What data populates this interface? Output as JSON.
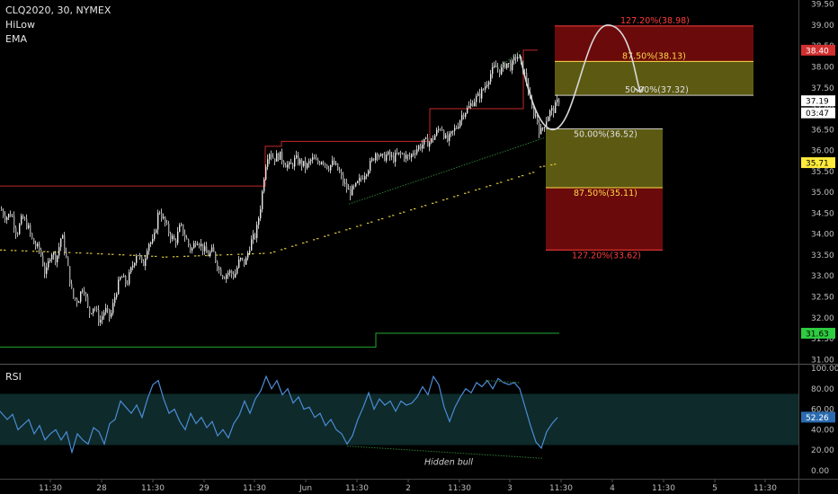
{
  "header": {
    "symbol": "CLQ2020, 30, NYMEX",
    "indicator1": "HiLow",
    "indicator2": "EMA",
    "rsi_label": "RSI"
  },
  "colors": {
    "background": "#000000",
    "candle": "#e8e8e8",
    "hilow_high": "#c62828",
    "hilow_low": "#1fa82e",
    "ema_dots": "#d8c43a",
    "rsi_line": "#4a8cd6",
    "rsi_band": "#0e2a2a",
    "zone_yellow": "#5c5a12",
    "zone_red": "#6b0a0a",
    "fib_red": "#ff3b3b",
    "fib_yellow": "#ffd84a",
    "fib_white": "#e0e0e0",
    "divergence": "#2e7d32"
  },
  "price_axis": {
    "ticks": [
      "39.50",
      "39.00",
      "38.50",
      "38.00",
      "37.50",
      "37.00",
      "36.50",
      "36.00",
      "35.50",
      "35.00",
      "34.50",
      "34.00",
      "33.50",
      "33.00",
      "32.50",
      "32.00",
      "31.50",
      "31.00"
    ],
    "tags": [
      {
        "label": "38.40",
        "value": 38.4,
        "bg": "#d32f2f",
        "fg": "#ffffff"
      },
      {
        "label": "37.19",
        "value": 37.19,
        "bg": "#ffffff",
        "fg": "#000000"
      },
      {
        "label": "03:47",
        "value": 36.9,
        "bg": "#ffffff",
        "fg": "#000000"
      },
      {
        "label": "35.71",
        "value": 35.71,
        "bg": "#ffeb3b",
        "fg": "#000000"
      },
      {
        "label": "31.63",
        "value": 31.63,
        "bg": "#2ecc40",
        "fg": "#000000"
      }
    ]
  },
  "rsi_axis": {
    "ticks": [
      "100.00",
      "80.00",
      "60.00",
      "40.00",
      "20.00",
      "0.00"
    ],
    "tag": {
      "label": "52.26",
      "value": 52.26,
      "bg": "#2b6cb0",
      "fg": "#ffffff"
    }
  },
  "time_axis": {
    "labels": [
      "11:30",
      "28",
      "11:30",
      "29",
      "11:30",
      "Jun",
      "11:30",
      "2",
      "11:30",
      "3",
      "11:30",
      "4",
      "11:30",
      "5",
      "11:30"
    ]
  },
  "chart_data": {
    "type": "candlestick",
    "price_ylim": [
      30.9,
      39.6
    ],
    "rsi_ylim": [
      0,
      100
    ],
    "fib_zones": [
      {
        "label": "127.20%(38.98)",
        "level": 38.98,
        "color": "red"
      },
      {
        "label": "87.50%(38.13)",
        "level": 38.13,
        "color": "yellow"
      },
      {
        "label": "50.00%(37.32)",
        "level": 37.32,
        "color": "white"
      },
      {
        "label": "50.00%(36.52)",
        "level": 36.52,
        "color": "white"
      },
      {
        "label": "87.50%(35.11)",
        "level": 35.11,
        "color": "yellow"
      },
      {
        "label": "127.20%(33.62)",
        "level": 33.62,
        "color": "red"
      }
    ],
    "annotations": [
      {
        "text": "Hidden bull"
      }
    ],
    "close_path": [
      [
        0,
        34.6
      ],
      [
        6,
        34.4
      ],
      [
        12,
        34.5
      ],
      [
        18,
        34.0
      ],
      [
        24,
        34.4
      ],
      [
        30,
        34.2
      ],
      [
        36,
        33.8
      ],
      [
        44,
        33.6
      ],
      [
        50,
        33.0
      ],
      [
        56,
        33.6
      ],
      [
        62,
        33.4
      ],
      [
        68,
        34.0
      ],
      [
        74,
        33.3
      ],
      [
        80,
        32.5
      ],
      [
        86,
        32.4
      ],
      [
        92,
        32.8
      ],
      [
        98,
        32.1
      ],
      [
        104,
        32.3
      ],
      [
        110,
        31.9
      ],
      [
        116,
        32.2
      ],
      [
        122,
        32.0
      ],
      [
        128,
        32.6
      ],
      [
        134,
        33.0
      ],
      [
        140,
        32.8
      ],
      [
        146,
        33.2
      ],
      [
        152,
        33.6
      ],
      [
        158,
        33.2
      ],
      [
        164,
        33.8
      ],
      [
        170,
        33.8
      ],
      [
        176,
        34.6
      ],
      [
        182,
        34.3
      ],
      [
        188,
        34.0
      ],
      [
        194,
        33.8
      ],
      [
        200,
        34.2
      ],
      [
        206,
        33.9
      ],
      [
        212,
        33.6
      ],
      [
        218,
        33.9
      ],
      [
        224,
        33.7
      ],
      [
        230,
        33.5
      ],
      [
        236,
        33.6
      ],
      [
        242,
        33.2
      ],
      [
        248,
        33.0
      ],
      [
        254,
        33.1
      ],
      [
        260,
        33.0
      ],
      [
        266,
        33.4
      ],
      [
        272,
        33.3
      ],
      [
        278,
        33.8
      ],
      [
        284,
        34.0
      ],
      [
        290,
        34.8
      ],
      [
        294,
        35.6
      ],
      [
        298,
        36.0
      ],
      [
        304,
        35.8
      ],
      [
        310,
        35.9
      ],
      [
        316,
        35.7
      ],
      [
        322,
        35.6
      ],
      [
        328,
        35.8
      ],
      [
        334,
        35.7
      ],
      [
        340,
        35.6
      ],
      [
        346,
        35.8
      ],
      [
        352,
        35.7
      ],
      [
        358,
        35.8
      ],
      [
        364,
        35.6
      ],
      [
        370,
        35.7
      ],
      [
        376,
        35.5
      ],
      [
        382,
        35.2
      ],
      [
        388,
        35.0
      ],
      [
        394,
        35.1
      ],
      [
        400,
        35.3
      ],
      [
        406,
        35.5
      ],
      [
        412,
        35.7
      ],
      [
        418,
        36.0
      ],
      [
        424,
        35.8
      ],
      [
        430,
        35.9
      ],
      [
        436,
        35.8
      ],
      [
        442,
        35.9
      ],
      [
        448,
        35.9
      ],
      [
        454,
        35.8
      ],
      [
        460,
        36.0
      ],
      [
        466,
        36.1
      ],
      [
        472,
        36.2
      ],
      [
        478,
        36.2
      ],
      [
        484,
        36.4
      ],
      [
        490,
        36.6
      ],
      [
        496,
        36.2
      ],
      [
        502,
        36.4
      ],
      [
        508,
        36.6
      ],
      [
        514,
        36.9
      ],
      [
        520,
        37.0
      ],
      [
        526,
        37.2
      ],
      [
        532,
        37.3
      ],
      [
        538,
        37.5
      ],
      [
        544,
        37.8
      ],
      [
        550,
        38.0
      ],
      [
        556,
        37.9
      ],
      [
        562,
        38.1
      ],
      [
        568,
        38.0
      ],
      [
        574,
        38.3
      ],
      [
        580,
        38.0
      ],
      [
        586,
        37.6
      ],
      [
        590,
        37.0
      ],
      [
        596,
        36.8
      ],
      [
        600,
        36.4
      ],
      [
        604,
        36.6
      ],
      [
        610,
        36.9
      ],
      [
        616,
        37.0
      ],
      [
        620,
        37.2
      ]
    ],
    "rsi_path": [
      [
        0,
        58
      ],
      [
        8,
        50
      ],
      [
        14,
        55
      ],
      [
        20,
        40
      ],
      [
        26,
        45
      ],
      [
        32,
        50
      ],
      [
        38,
        36
      ],
      [
        44,
        44
      ],
      [
        50,
        30
      ],
      [
        56,
        36
      ],
      [
        62,
        40
      ],
      [
        68,
        30
      ],
      [
        74,
        38
      ],
      [
        80,
        18
      ],
      [
        86,
        36
      ],
      [
        92,
        30
      ],
      [
        98,
        26
      ],
      [
        104,
        42
      ],
      [
        110,
        38
      ],
      [
        116,
        26
      ],
      [
        122,
        46
      ],
      [
        128,
        50
      ],
      [
        134,
        68
      ],
      [
        140,
        62
      ],
      [
        146,
        56
      ],
      [
        152,
        64
      ],
      [
        158,
        52
      ],
      [
        164,
        70
      ],
      [
        170,
        84
      ],
      [
        176,
        88
      ],
      [
        182,
        70
      ],
      [
        188,
        56
      ],
      [
        194,
        60
      ],
      [
        200,
        48
      ],
      [
        206,
        40
      ],
      [
        212,
        56
      ],
      [
        218,
        46
      ],
      [
        224,
        52
      ],
      [
        230,
        42
      ],
      [
        236,
        48
      ],
      [
        242,
        34
      ],
      [
        248,
        40
      ],
      [
        254,
        32
      ],
      [
        260,
        46
      ],
      [
        266,
        54
      ],
      [
        272,
        68
      ],
      [
        278,
        56
      ],
      [
        284,
        70
      ],
      [
        290,
        78
      ],
      [
        296,
        92
      ],
      [
        302,
        80
      ],
      [
        308,
        88
      ],
      [
        314,
        74
      ],
      [
        320,
        80
      ],
      [
        326,
        66
      ],
      [
        332,
        72
      ],
      [
        338,
        60
      ],
      [
        344,
        62
      ],
      [
        350,
        52
      ],
      [
        356,
        56
      ],
      [
        362,
        44
      ],
      [
        368,
        50
      ],
      [
        374,
        40
      ],
      [
        380,
        36
      ],
      [
        386,
        26
      ],
      [
        392,
        34
      ],
      [
        398,
        50
      ],
      [
        404,
        62
      ],
      [
        410,
        76
      ],
      [
        416,
        60
      ],
      [
        422,
        70
      ],
      [
        428,
        64
      ],
      [
        434,
        68
      ],
      [
        440,
        58
      ],
      [
        446,
        68
      ],
      [
        452,
        64
      ],
      [
        458,
        66
      ],
      [
        464,
        72
      ],
      [
        470,
        82
      ],
      [
        476,
        74
      ],
      [
        482,
        92
      ],
      [
        488,
        84
      ],
      [
        494,
        62
      ],
      [
        500,
        48
      ],
      [
        506,
        62
      ],
      [
        512,
        72
      ],
      [
        518,
        80
      ],
      [
        524,
        76
      ],
      [
        530,
        86
      ],
      [
        536,
        82
      ],
      [
        542,
        88
      ],
      [
        548,
        80
      ],
      [
        554,
        90
      ],
      [
        560,
        86
      ],
      [
        566,
        84
      ],
      [
        572,
        86
      ],
      [
        578,
        80
      ],
      [
        584,
        62
      ],
      [
        590,
        44
      ],
      [
        596,
        28
      ],
      [
        602,
        22
      ],
      [
        608,
        38
      ],
      [
        614,
        46
      ],
      [
        620,
        52
      ]
    ]
  }
}
